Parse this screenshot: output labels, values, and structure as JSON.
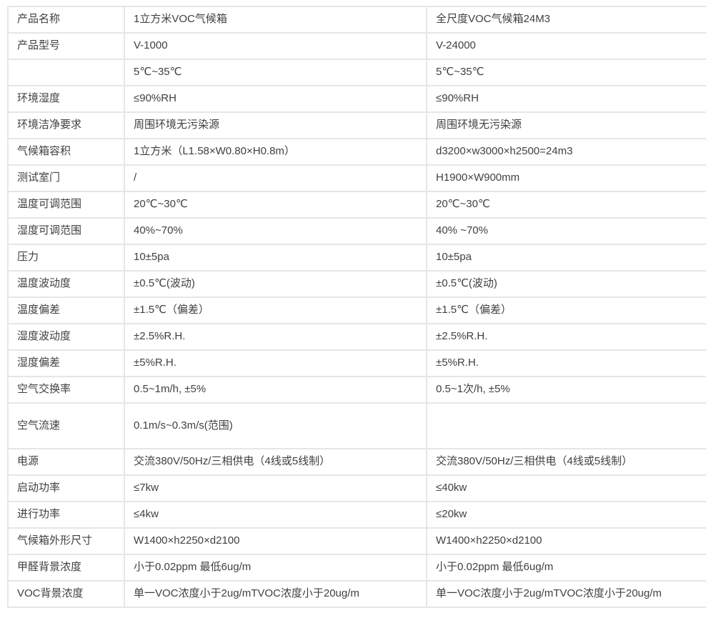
{
  "colors": {
    "background": "#ffffff",
    "border": "#e6e6e6",
    "text": "#404040"
  },
  "table": {
    "description_labels": {
      "label_column": "spec-name",
      "value_column_1": "V-1000",
      "value_column_2": "V-24000"
    },
    "rows": [
      {
        "label": "产品名称",
        "v1000": "1立方米VOC气候箱",
        "v24000": "全尺度VOC气候箱24M3"
      },
      {
        "label": "产品型号",
        "v1000": "V-1000",
        "v24000": "V-24000"
      },
      {
        "label": "",
        "v1000": "5℃~35℃",
        "v24000": "5℃~35℃"
      },
      {
        "label": "环境湿度",
        "v1000": "≤90%RH",
        "v24000": "≤90%RH"
      },
      {
        "label": "环境洁净要求",
        "v1000": "周围环境无污染源",
        "v24000": "周围环境无污染源"
      },
      {
        "label": "气候箱容积",
        "v1000": "1立方米（L1.58×W0.80×H0.8m）",
        "v24000": "d3200×w3000×h2500=24m3"
      },
      {
        "label": "测试室门",
        "v1000": "/",
        "v24000": "H1900×W900mm"
      },
      {
        "label": "温度可调范围",
        "v1000": "20℃~30℃",
        "v24000": "20℃~30℃"
      },
      {
        "label": "湿度可调范围",
        "v1000": "40%~70%",
        "v24000": "40% ~70%"
      },
      {
        "label": "压力",
        "v1000": "10±5pa",
        "v24000": "10±5pa"
      },
      {
        "label": "温度波动度",
        "v1000": "±0.5℃(波动)",
        "v24000": "±0.5℃(波动)"
      },
      {
        "label": "温度偏差",
        "v1000": "±1.5℃（偏差）",
        "v24000": "±1.5℃（偏差）"
      },
      {
        "label": "湿度波动度",
        "v1000": "±2.5%R.H.",
        "v24000": "±2.5%R.H."
      },
      {
        "label": "湿度偏差",
        "v1000": "±5%R.H.",
        "v24000": "±5%R.H."
      },
      {
        "label": "空气交换率",
        "v1000": "0.5~1m/h, ±5%",
        "v24000": "0.5~1次/h, ±5%"
      },
      {
        "label": "空气流速",
        "v1000": "0.1m/s~0.3m/s(范围)",
        "v24000": "",
        "tall": true
      },
      {
        "label": "电源",
        "v1000": "交流380V/50Hz/三相供电（4线或5线制）",
        "v24000": "交流380V/50Hz/三相供电（4线或5线制）"
      },
      {
        "label": "启动功率",
        "v1000": "≤7kw",
        "v24000": "≤40kw"
      },
      {
        "label": "进行功率",
        "v1000": "≤4kw",
        "v24000": "≤20kw"
      },
      {
        "label": "气候箱外形尺寸",
        "v1000": "W1400×h2250×d2100",
        "v24000": "W1400×h2250×d2100"
      },
      {
        "label": "甲醛背景浓度",
        "v1000": "小于0.02ppm 最低6ug/m",
        "v24000": "小于0.02ppm 最低6ug/m"
      },
      {
        "label": "VOC背景浓度",
        "v1000": "单一VOC浓度小于2ug/mTVOC浓度小于20ug/m",
        "v24000": "单一VOC浓度小于2ug/mTVOC浓度小于20ug/m"
      }
    ]
  }
}
